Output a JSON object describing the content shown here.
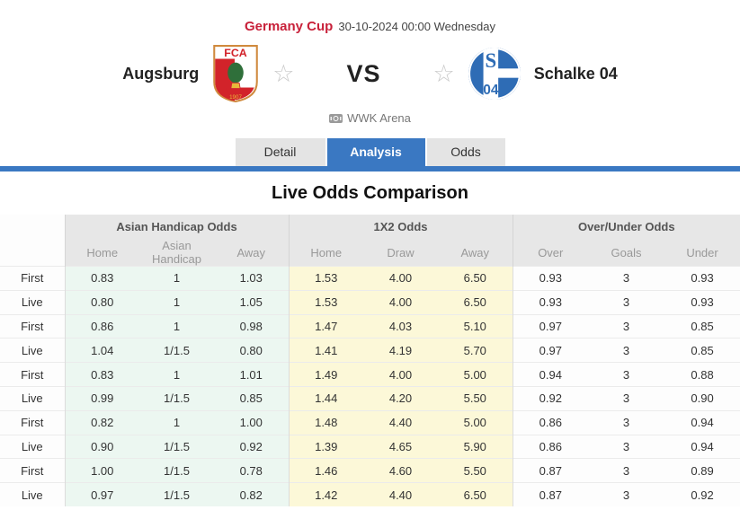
{
  "header": {
    "league": "Germany Cup",
    "datetime": "30-10-2024 00:00 Wednesday"
  },
  "teams": {
    "home": {
      "name": "Augsburg"
    },
    "away": {
      "name": "Schalke 04"
    },
    "vs_label": "VS"
  },
  "venue": {
    "name": "WWK Arena"
  },
  "tabs": [
    {
      "label": "Detail",
      "active": false
    },
    {
      "label": "Analysis",
      "active": true
    },
    {
      "label": "Odds",
      "active": false
    }
  ],
  "section": {
    "title": "Live Odds Comparison"
  },
  "table": {
    "groups": [
      "Asian Handicap Odds",
      "1X2 Odds",
      "Over/Under Odds"
    ],
    "subheaders": {
      "ah": [
        "Home",
        "Asian Handicap",
        "Away"
      ],
      "x2": [
        "Home",
        "Draw",
        "Away"
      ],
      "ou": [
        "Over",
        "Goals",
        "Under"
      ]
    },
    "rows": [
      {
        "label": "First",
        "ah": [
          "0.83",
          "1",
          "1.03"
        ],
        "x2": [
          "1.53",
          "4.00",
          "6.50"
        ],
        "ou": [
          "0.93",
          "3",
          "0.93"
        ]
      },
      {
        "label": "Live",
        "ah": [
          "0.80",
          "1",
          "1.05"
        ],
        "x2": [
          "1.53",
          "4.00",
          "6.50"
        ],
        "ou": [
          "0.93",
          "3",
          "0.93"
        ]
      },
      {
        "label": "First",
        "ah": [
          "0.86",
          "1",
          "0.98"
        ],
        "x2": [
          "1.47",
          "4.03",
          "5.10"
        ],
        "ou": [
          "0.97",
          "3",
          "0.85"
        ]
      },
      {
        "label": "Live",
        "ah": [
          "1.04",
          "1/1.5",
          "0.80"
        ],
        "x2": [
          "1.41",
          "4.19",
          "5.70"
        ],
        "ou": [
          "0.97",
          "3",
          "0.85"
        ]
      },
      {
        "label": "First",
        "ah": [
          "0.83",
          "1",
          "1.01"
        ],
        "x2": [
          "1.49",
          "4.00",
          "5.00"
        ],
        "ou": [
          "0.94",
          "3",
          "0.88"
        ]
      },
      {
        "label": "Live",
        "ah": [
          "0.99",
          "1/1.5",
          "0.85"
        ],
        "x2": [
          "1.44",
          "4.20",
          "5.50"
        ],
        "ou": [
          "0.92",
          "3",
          "0.90"
        ]
      },
      {
        "label": "First",
        "ah": [
          "0.82",
          "1",
          "1.00"
        ],
        "x2": [
          "1.48",
          "4.40",
          "5.00"
        ],
        "ou": [
          "0.86",
          "3",
          "0.94"
        ]
      },
      {
        "label": "Live",
        "ah": [
          "0.90",
          "1/1.5",
          "0.92"
        ],
        "x2": [
          "1.39",
          "4.65",
          "5.90"
        ],
        "ou": [
          "0.86",
          "3",
          "0.94"
        ]
      },
      {
        "label": "First",
        "ah": [
          "1.00",
          "1/1.5",
          "0.78"
        ],
        "x2": [
          "1.46",
          "4.60",
          "5.50"
        ],
        "ou": [
          "0.87",
          "3",
          "0.89"
        ]
      },
      {
        "label": "Live",
        "ah": [
          "0.97",
          "1/1.5",
          "0.82"
        ],
        "x2": [
          "1.42",
          "4.40",
          "6.50"
        ],
        "ou": [
          "0.87",
          "3",
          "0.92"
        ]
      }
    ]
  },
  "colors": {
    "accent_blue": "#3a78c2",
    "league_red": "#c8213a",
    "ah_green_bg": "#ecf7f1",
    "x2_yellow_bg": "#fcf8d8",
    "header_gray_bg": "#e7e7e7",
    "schalke_blue": "#2e6cb5",
    "augsburg_red": "#d2232a"
  },
  "icons": {
    "favorite": "star-outline",
    "venue": "stadium"
  }
}
